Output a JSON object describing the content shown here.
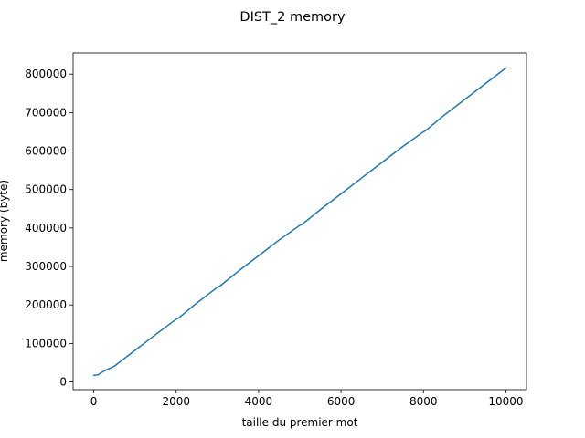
{
  "chart_data": {
    "type": "line",
    "title": "DIST_2 memory",
    "xlabel": "taille du premier mot",
    "ylabel": "memory (byte)",
    "xlim": [
      -500,
      10500
    ],
    "ylim": [
      -20000,
      855000
    ],
    "xticks": [
      0,
      2000,
      4000,
      6000,
      8000,
      10000
    ],
    "yticks": [
      0,
      100000,
      200000,
      300000,
      400000,
      500000,
      600000,
      700000,
      800000
    ],
    "xtick_labels": [
      "0",
      "2000",
      "4000",
      "6000",
      "8000",
      "10000"
    ],
    "ytick_labels": [
      "0",
      "100000",
      "200000",
      "300000",
      "400000",
      "500000",
      "600000",
      "700000",
      "800000"
    ],
    "grid": false,
    "series": [
      {
        "color": "#1f77b4",
        "x": [
          1,
          10,
          50,
          100,
          200,
          300,
          500,
          1000,
          1500,
          2000,
          2050,
          2500,
          3000,
          3050,
          3500,
          4000,
          4500,
          5000,
          5050,
          5500,
          6000,
          6500,
          7000,
          7500,
          8000,
          8050,
          8500,
          9000,
          9500,
          10000
        ],
        "y": [
          17000,
          18000,
          17500,
          18500,
          25000,
          31000,
          41000,
          82000,
          123000,
          163000,
          165000,
          205000,
          246000,
          248000,
          287000,
          328000,
          369000,
          407000,
          409000,
          448000,
          489000,
          530000,
          571000,
          612000,
          650000,
          653000,
          693000,
          734000,
          775000,
          816000
        ]
      }
    ]
  }
}
